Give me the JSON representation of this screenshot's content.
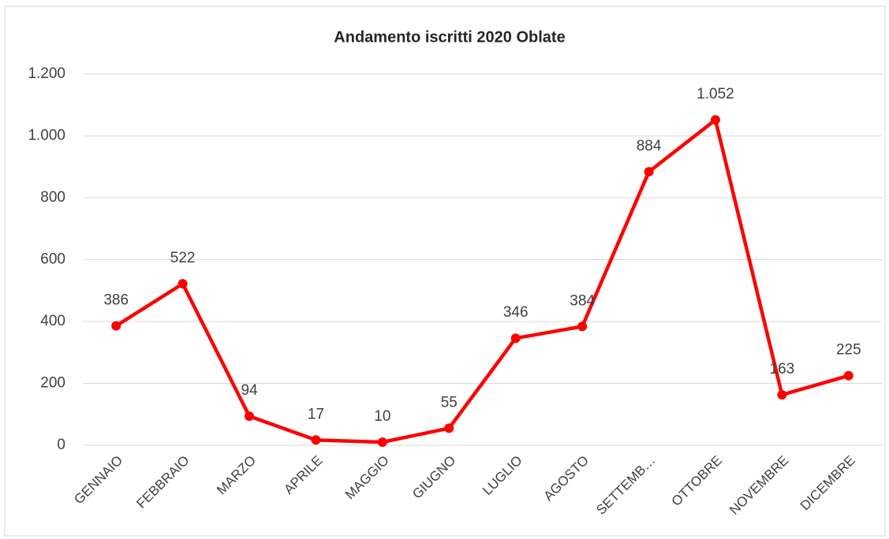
{
  "chart_data": {
    "type": "line",
    "title": "Andamento iscritti 2020 Oblate",
    "categories": [
      "GENNAIO",
      "FEBBRAIO",
      "MARZO",
      "APRILE",
      "MAGGIO",
      "GIUGNO",
      "LUGLIO",
      "AGOSTO",
      "SETTEMB…",
      "OTTOBRE",
      "NOVEMBRE",
      "DICEMBRE"
    ],
    "series": [
      {
        "color": "#ff0000",
        "values": [
          386,
          522,
          94,
          17,
          10,
          55,
          346,
          384,
          884,
          1052,
          163,
          225
        ],
        "value_labels": [
          "386",
          "522",
          "94",
          "17",
          "10",
          "55",
          "346",
          "384",
          "884",
          "1.052",
          "163",
          "225"
        ]
      }
    ],
    "ylim": [
      0,
      1200
    ],
    "yticks": [
      0,
      200,
      400,
      600,
      800,
      {
        "value": 1000,
        "label": "1.000"
      },
      {
        "value": 1200,
        "label": "1.200"
      }
    ],
    "grid": true
  }
}
